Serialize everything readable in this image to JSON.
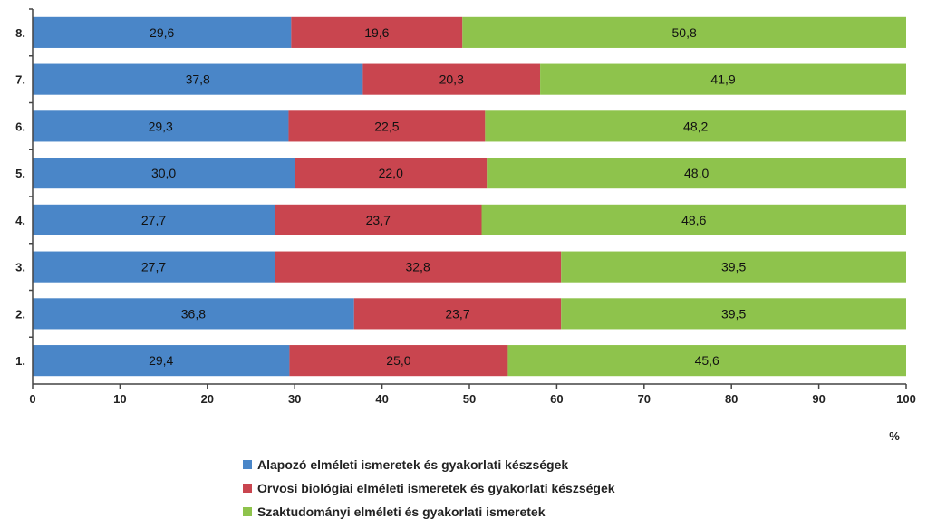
{
  "chart_data": {
    "type": "bar",
    "orientation": "horizontal",
    "stacked": true,
    "categories": [
      "1.",
      "2.",
      "3.",
      "4.",
      "5.",
      "6.",
      "7.",
      "8."
    ],
    "series": [
      {
        "name": "Alapozó elméleti ismeretek és gyakorlati készségek",
        "color": "#4a86c8",
        "values": [
          29.4,
          36.8,
          27.7,
          27.7,
          30.0,
          29.3,
          37.8,
          29.6
        ]
      },
      {
        "name": "Orvosi biológiai elméleti ismeretek és gyakorlati készségek",
        "color": "#c9454f",
        "values": [
          25.0,
          23.7,
          32.8,
          23.7,
          22.0,
          22.5,
          20.3,
          19.6
        ]
      },
      {
        "name": "Szaktudományi elméleti és gyakorlati ismeretek",
        "color": "#8ec34c",
        "values": [
          45.6,
          39.5,
          39.5,
          48.6,
          48.0,
          48.2,
          41.9,
          50.8
        ]
      }
    ],
    "value_labels": [
      [
        "29,4",
        "36,8",
        "27,7",
        "27,7",
        "30,0",
        "29,3",
        "37,8",
        "29,6"
      ],
      [
        "25,0",
        "23,7",
        "32,8",
        "23,7",
        "22,0",
        "22,5",
        "20,3",
        "19,6"
      ],
      [
        "45,6",
        "39,5",
        "39,5",
        "48,6",
        "48,0",
        "48,2",
        "41,9",
        "50,8"
      ]
    ],
    "xlim": [
      0,
      100
    ],
    "x_ticks": [
      0,
      10,
      20,
      30,
      40,
      50,
      60,
      70,
      80,
      90,
      100
    ],
    "xlabel": "%",
    "ylabel": "",
    "title": "",
    "grid": false,
    "legend_position": "bottom"
  }
}
